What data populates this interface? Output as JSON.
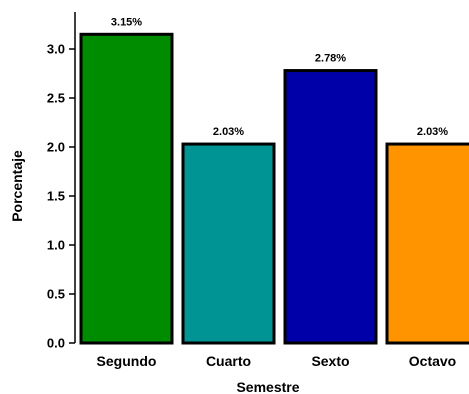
{
  "chart_data": {
    "type": "bar",
    "categories": [
      "Segundo",
      "Cuarto",
      "Sexto",
      "Octavo"
    ],
    "values": [
      3.15,
      2.03,
      2.78,
      2.03
    ],
    "value_labels": [
      "3.15%",
      "2.03%",
      "2.78%",
      "2.03%"
    ],
    "colors": [
      "#008c00",
      "#009494",
      "#0000a8",
      "#ff9400"
    ],
    "xlabel": "Semestre",
    "ylabel": "Porcentaje",
    "ylim": [
      0,
      3.3
    ],
    "y_ticks": [
      "0.0",
      "0.5",
      "1.0",
      "1.5",
      "2.0",
      "2.5",
      "3.0"
    ],
    "y_tick_values": [
      0,
      0.5,
      1,
      1.5,
      2,
      2.5,
      3
    ],
    "grid": false,
    "legend": "none"
  }
}
